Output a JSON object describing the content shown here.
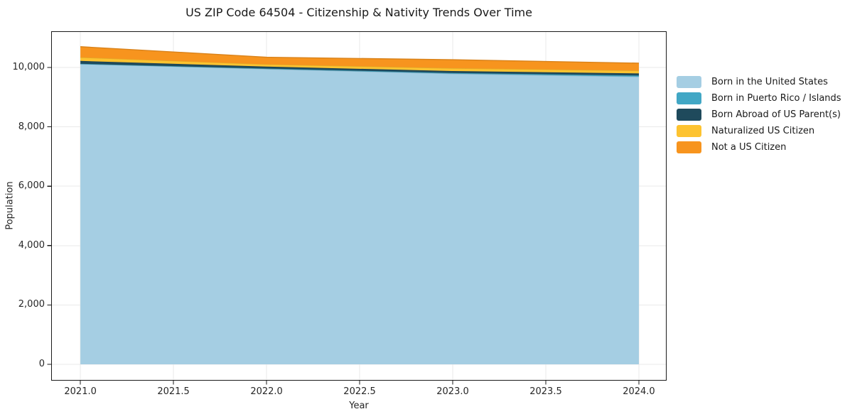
{
  "chart": {
    "title": "US ZIP Code 64504 - Citizenship & Nativity Trends Over Time",
    "xlabel": "Year",
    "ylabel": "Population"
  },
  "chart_data": {
    "type": "area",
    "stacked": true,
    "title": "US ZIP Code 64504 - Citizenship & Nativity Trends Over Time",
    "xlabel": "Year",
    "ylabel": "Population",
    "x": [
      2021,
      2022,
      2023,
      2024
    ],
    "series": [
      {
        "name": "Born in the United States",
        "color": "#a5cee3",
        "values": [
          10120,
          9950,
          9790,
          9690
        ]
      },
      {
        "name": "Born in Puerto Rico / Islands",
        "color": "#41a7c5",
        "values": [
          5,
          15,
          25,
          40
        ]
      },
      {
        "name": "Born Abroad of US Parent(s)",
        "color": "#1f4a5c",
        "values": [
          95,
          65,
          65,
          70
        ]
      },
      {
        "name": "Naturalized US Citizen",
        "color": "#fdc330",
        "values": [
          120,
          75,
          95,
          95
        ]
      },
      {
        "name": "Not a US Citizen",
        "color": "#f7941e",
        "values": [
          360,
          240,
          285,
          250
        ]
      }
    ],
    "xlim": [
      2020.843,
      2024.149
    ],
    "ylim": [
      -550,
      11220
    ],
    "xticks": {
      "values": [
        2021,
        2021.5,
        2022,
        2022.5,
        2023,
        2023.5,
        2024
      ],
      "labels": [
        "2021.0",
        "2021.5",
        "2022.0",
        "2022.5",
        "2023.0",
        "2023.5",
        "2024.0"
      ]
    },
    "yticks": {
      "values": [
        0,
        2000,
        4000,
        6000,
        8000,
        10000
      ],
      "labels": [
        "0",
        "2,000",
        "4,000",
        "6,000",
        "8,000",
        "10,000"
      ]
    },
    "grid": true,
    "legend_position": "right-outside"
  },
  "legend": {
    "items": [
      {
        "label": "Born in the United States",
        "color": "#a5cee3"
      },
      {
        "label": "Born in Puerto Rico / Islands",
        "color": "#41a7c5"
      },
      {
        "label": "Born Abroad of US Parent(s)",
        "color": "#1f4a5c"
      },
      {
        "label": "Naturalized US Citizen",
        "color": "#fdc330"
      },
      {
        "label": "Not a US Citizen",
        "color": "#f7941e"
      }
    ]
  },
  "colors": {
    "grid": "#e9e9e9",
    "spine": "#1a1a1a",
    "text": "#262626",
    "background": "#ffffff"
  }
}
